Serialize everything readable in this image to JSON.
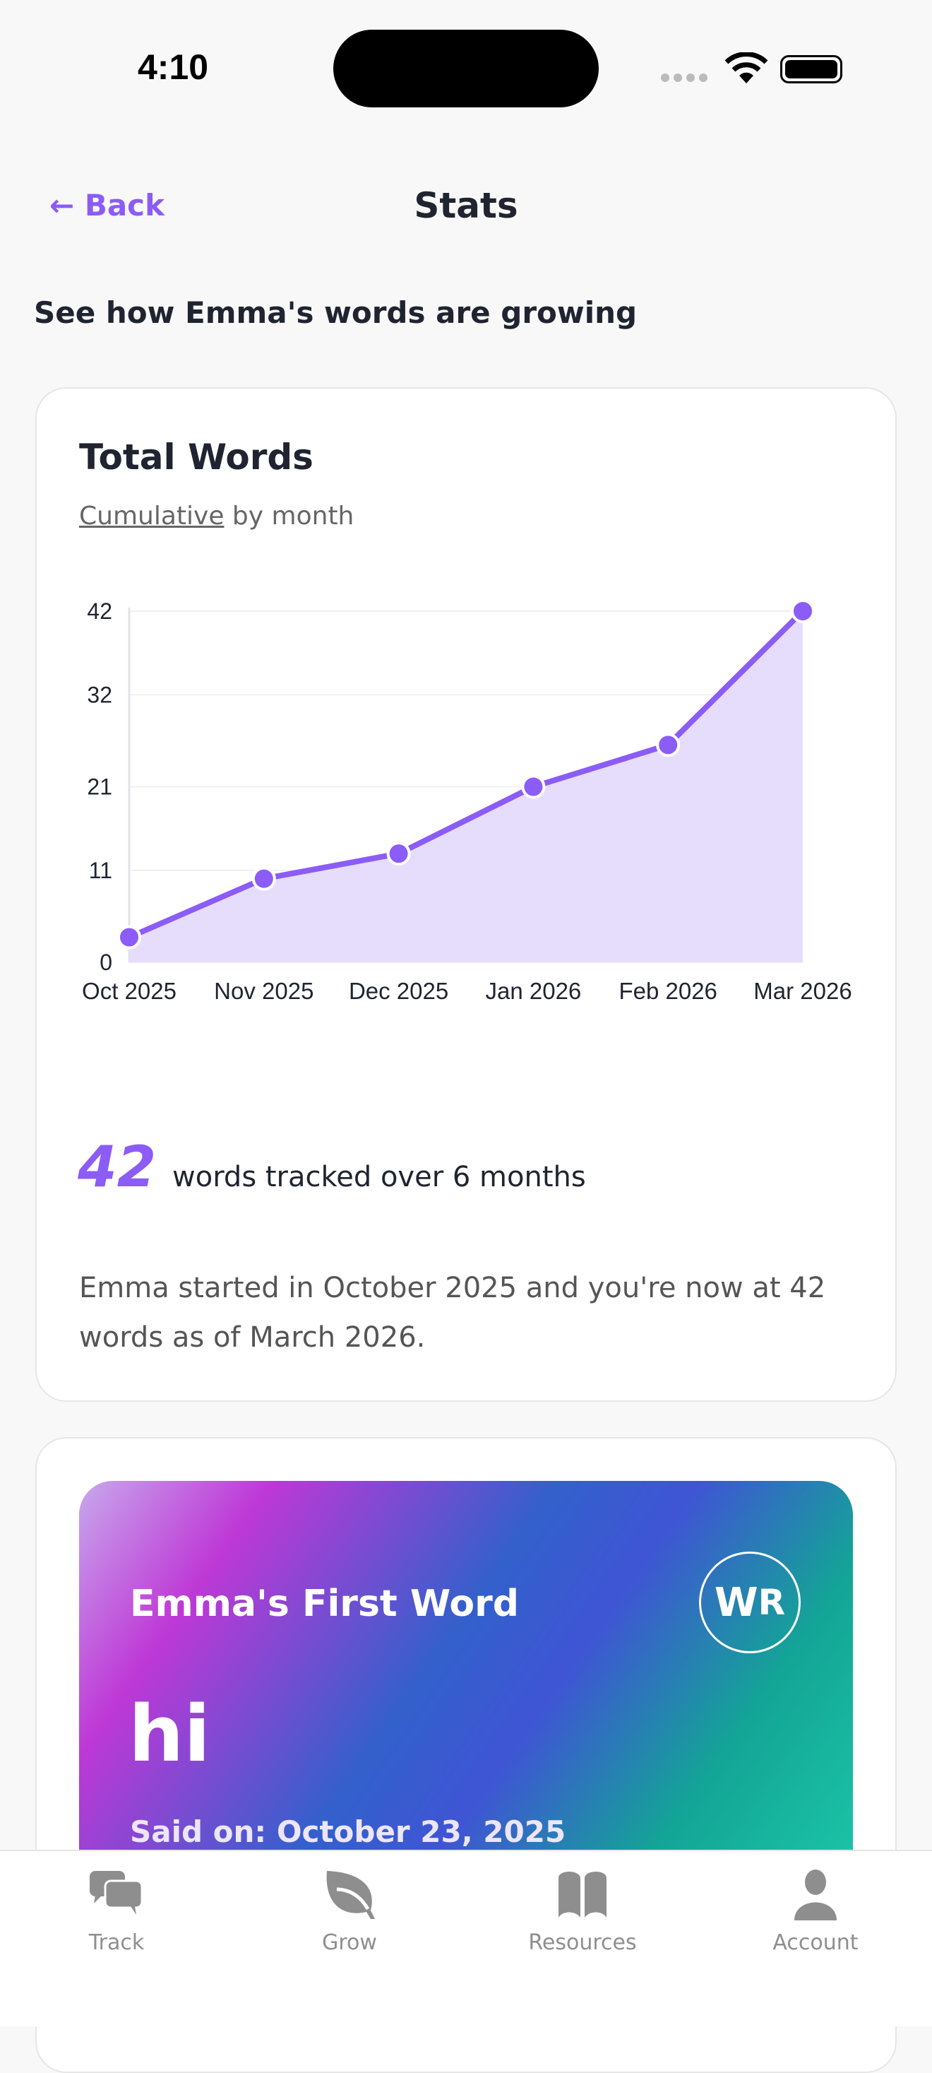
{
  "status": {
    "time": "4:10"
  },
  "header": {
    "back": "← Back",
    "title": "Stats"
  },
  "subtitle": "See how Emma's words are growing",
  "total_card": {
    "title": "Total Words",
    "sub_link": "Cumulative",
    "sub_rest": " by month",
    "big_number": "42",
    "big_text": "words tracked over 6 months",
    "description": "Emma started in October 2025 and you're now at 42 words as of March 2026."
  },
  "chart_data": {
    "type": "area",
    "categories": [
      "Oct 2025",
      "Nov 2025",
      "Dec 2025",
      "Jan 2026",
      "Feb 2026",
      "Mar 2026"
    ],
    "values": [
      3,
      10,
      13,
      21,
      26,
      42
    ],
    "yticks": [
      0,
      11,
      21,
      32,
      42
    ],
    "ylim": [
      0,
      42
    ],
    "grid": true,
    "color": "#8b5cf6",
    "fill": "#e6ddfd"
  },
  "first_word": {
    "label": "Emma's First Word",
    "word": "hi",
    "said_on": "Said on: October 23, 2025",
    "logo": "WR"
  },
  "tabs": [
    {
      "label": "Track",
      "icon": "chat-bubbles-icon"
    },
    {
      "label": "Grow",
      "icon": "leaf-icon"
    },
    {
      "label": "Resources",
      "icon": "book-icon"
    },
    {
      "label": "Account",
      "icon": "person-icon"
    }
  ],
  "colors": {
    "accent": "#8b5cf6",
    "tab_inactive": "#8e8e8e"
  }
}
